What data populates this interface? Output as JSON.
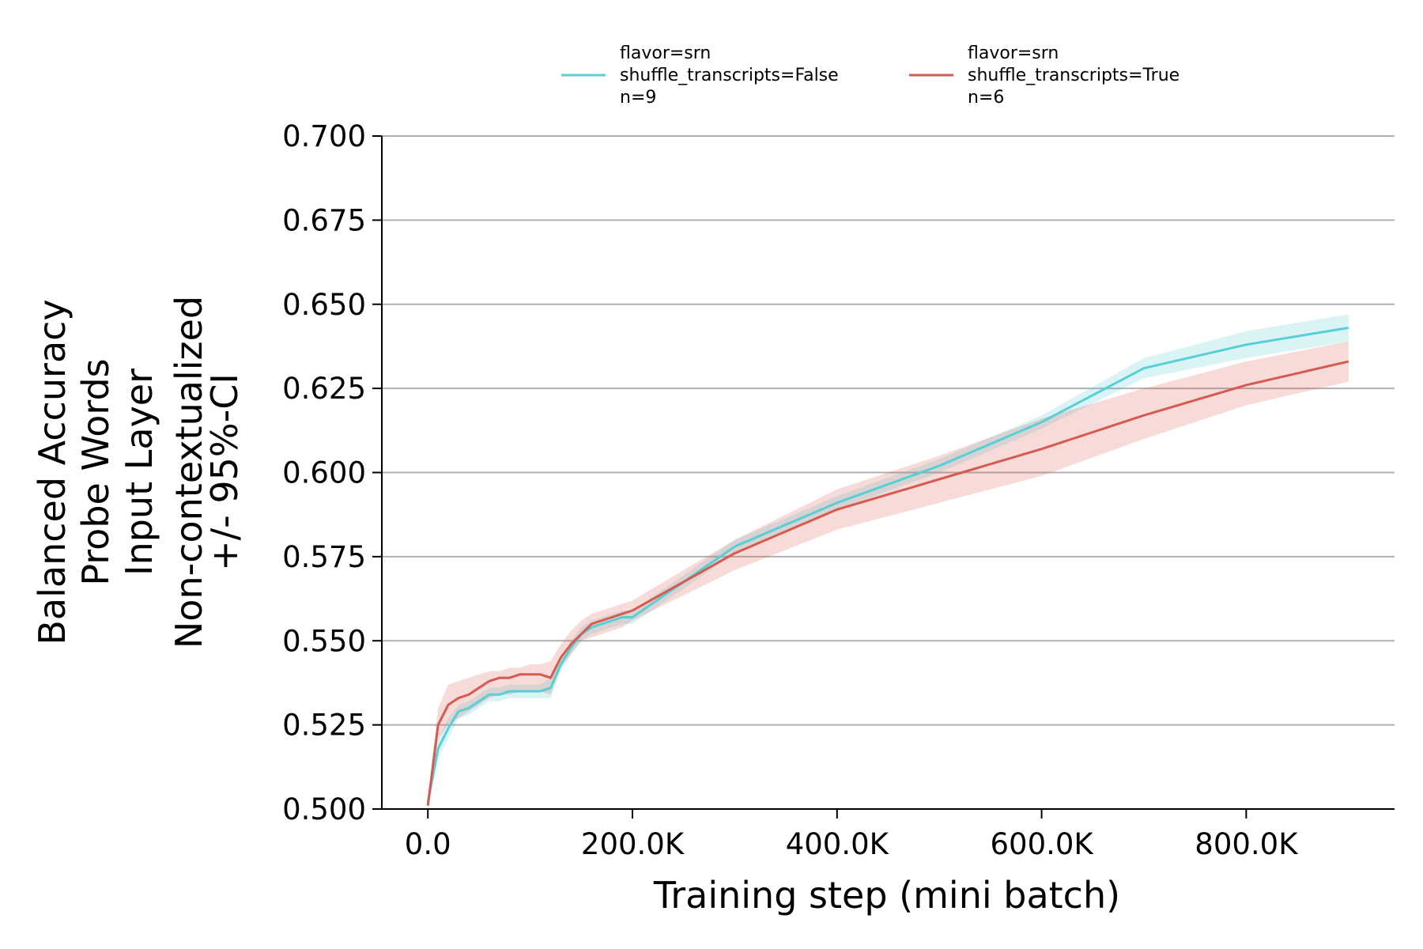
{
  "chart_data": {
    "type": "line",
    "xlabel": "Training step (mini batch)",
    "ylabel_lines": [
      "Balanced Accuracy",
      "Probe Words",
      "Input Layer",
      "Non-contextualized",
      "+/- 95%-CI"
    ],
    "xlim": [
      -45000,
      945000
    ],
    "ylim": [
      0.5,
      0.7
    ],
    "x_ticks": [
      {
        "value": 0,
        "label": "0.0"
      },
      {
        "value": 200000,
        "label": "200.0K"
      },
      {
        "value": 400000,
        "label": "400.0K"
      },
      {
        "value": 600000,
        "label": "600.0K"
      },
      {
        "value": 800000,
        "label": "800.0K"
      }
    ],
    "y_ticks": [
      {
        "value": 0.5,
        "label": "0.500"
      },
      {
        "value": 0.525,
        "label": "0.525"
      },
      {
        "value": 0.55,
        "label": "0.550"
      },
      {
        "value": 0.575,
        "label": "0.575"
      },
      {
        "value": 0.6,
        "label": "0.600"
      },
      {
        "value": 0.625,
        "label": "0.625"
      },
      {
        "value": 0.65,
        "label": "0.650"
      },
      {
        "value": 0.675,
        "label": "0.675"
      },
      {
        "value": 0.7,
        "label": "0.700"
      }
    ],
    "grid": "horizontal",
    "legend_position": "top",
    "series": [
      {
        "name_lines": [
          "flavor=srn",
          "shuffle_transcripts=False",
          "n=9"
        ],
        "color": "#56cfd5",
        "x": [
          0,
          10000,
          20000,
          30000,
          40000,
          50000,
          60000,
          70000,
          80000,
          90000,
          100000,
          110000,
          120000,
          130000,
          140000,
          150000,
          160000,
          170000,
          180000,
          190000,
          200000,
          300000,
          400000,
          500000,
          600000,
          700000,
          800000,
          900000
        ],
        "y": [
          0.502,
          0.518,
          0.524,
          0.529,
          0.53,
          0.532,
          0.534,
          0.534,
          0.535,
          0.535,
          0.535,
          0.535,
          0.536,
          0.543,
          0.548,
          0.552,
          0.554,
          0.555,
          0.556,
          0.557,
          0.557,
          0.578,
          0.591,
          0.602,
          0.615,
          0.631,
          0.638,
          0.643
        ],
        "ci_low": [
          0.5,
          0.515,
          0.521,
          0.527,
          0.528,
          0.53,
          0.532,
          0.532,
          0.533,
          0.533,
          0.533,
          0.533,
          0.533,
          0.541,
          0.546,
          0.55,
          0.552,
          0.553,
          0.554,
          0.555,
          0.555,
          0.576,
          0.589,
          0.6,
          0.613,
          0.628,
          0.634,
          0.639
        ],
        "ci_high": [
          0.504,
          0.521,
          0.527,
          0.531,
          0.532,
          0.534,
          0.536,
          0.536,
          0.537,
          0.537,
          0.537,
          0.537,
          0.539,
          0.545,
          0.55,
          0.554,
          0.556,
          0.557,
          0.558,
          0.559,
          0.559,
          0.58,
          0.593,
          0.604,
          0.617,
          0.634,
          0.642,
          0.647
        ]
      },
      {
        "name_lines": [
          "flavor=srn",
          "shuffle_transcripts=True",
          "n=6"
        ],
        "color": "#d65a50",
        "x": [
          0,
          10000,
          20000,
          30000,
          40000,
          50000,
          60000,
          70000,
          80000,
          90000,
          100000,
          110000,
          120000,
          130000,
          140000,
          150000,
          160000,
          170000,
          180000,
          190000,
          200000,
          300000,
          400000,
          500000,
          600000,
          700000,
          800000,
          900000
        ],
        "y": [
          0.501,
          0.525,
          0.531,
          0.533,
          0.534,
          0.536,
          0.538,
          0.539,
          0.539,
          0.54,
          0.54,
          0.54,
          0.539,
          0.545,
          0.549,
          0.552,
          0.555,
          0.556,
          0.557,
          0.558,
          0.559,
          0.576,
          0.589,
          0.598,
          0.607,
          0.617,
          0.626,
          0.633
        ],
        "ci_low": [
          0.5,
          0.521,
          0.525,
          0.527,
          0.529,
          0.531,
          0.533,
          0.534,
          0.534,
          0.535,
          0.535,
          0.535,
          0.534,
          0.542,
          0.546,
          0.55,
          0.551,
          0.552,
          0.553,
          0.554,
          0.556,
          0.571,
          0.583,
          0.591,
          0.599,
          0.61,
          0.62,
          0.627
        ],
        "ci_high": [
          0.503,
          0.53,
          0.537,
          0.538,
          0.539,
          0.54,
          0.541,
          0.541,
          0.542,
          0.542,
          0.543,
          0.543,
          0.544,
          0.549,
          0.553,
          0.556,
          0.558,
          0.559,
          0.56,
          0.561,
          0.562,
          0.58,
          0.595,
          0.605,
          0.616,
          0.625,
          0.633,
          0.639
        ]
      }
    ]
  }
}
